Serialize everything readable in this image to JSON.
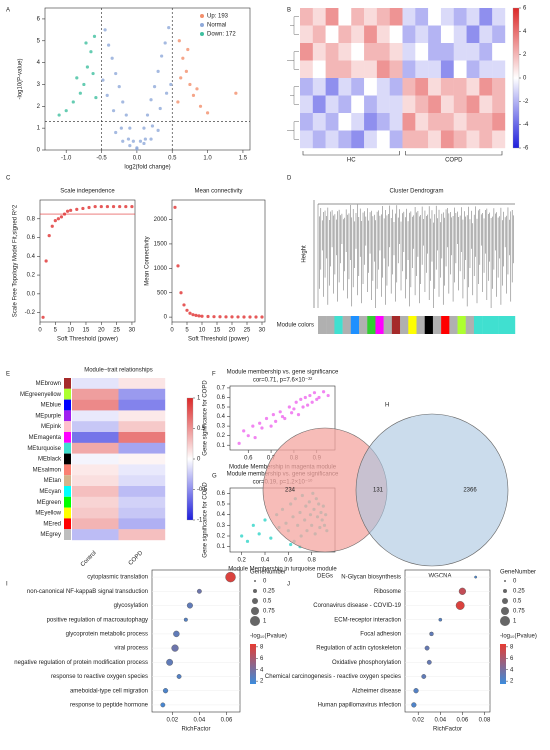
{
  "chart_data": [
    {
      "type": "scatter",
      "panel": "A",
      "xlabel": "log2(fold change)",
      "ylabel": "-log10(P-value)",
      "xlim": [
        -1.3,
        1.6
      ],
      "ylim": [
        0,
        6.5
      ],
      "xticks": [
        {
          "value": -1,
          "label": "-1.0"
        },
        {
          "value": -0.5,
          "label": "-0.5"
        },
        {
          "value": 0,
          "label": "0.0"
        },
        0.5,
        {
          "value": 1,
          "label": "1.0"
        },
        1.5
      ],
      "yticks": [
        0,
        1,
        2,
        3,
        4,
        5,
        6
      ],
      "thresholds": {
        "x": [
          -0.5,
          0.5
        ],
        "y": 1.3
      },
      "series": [
        {
          "name": "Up: 193",
          "color": "#f28e6b",
          "x": [
            0.6,
            0.65,
            0.7,
            0.75,
            0.8,
            0.9,
            1.0,
            0.62,
            0.72,
            0.85,
            1.4,
            0.58
          ],
          "values": [
            5.0,
            4.2,
            3.6,
            3.0,
            2.5,
            2.0,
            1.7,
            3.3,
            4.6,
            2.8,
            2.6,
            2.2
          ]
        },
        {
          "name": "Normal",
          "color": "#8fa9d9",
          "x": [
            -0.45,
            -0.4,
            -0.35,
            -0.3,
            -0.25,
            -0.2,
            -0.15,
            -0.1,
            -0.05,
            0,
            0.05,
            0.1,
            0.15,
            0.2,
            0.25,
            0.3,
            0.35,
            0.4,
            0.45,
            -0.42,
            -0.33,
            -0.22,
            -0.12,
            0.12,
            0.22,
            0.33,
            0.42,
            -0.3,
            -0.1,
            0.1,
            0.3,
            -0.2,
            0.2,
            0,
            -0.48,
            0.48
          ],
          "values": [
            5.5,
            4.8,
            4.2,
            3.5,
            2.9,
            2.2,
            1.6,
            1,
            0.4,
            0.1,
            0.4,
            1,
            1.6,
            2.3,
            2.9,
            3.6,
            4.3,
            4.9,
            5.6,
            2.5,
            1.8,
            1.0,
            0.5,
            0.5,
            1.1,
            1.9,
            2.6,
            0.8,
            0.2,
            0.3,
            0.9,
            0.4,
            0.5,
            0.05,
            3.2,
            3.0
          ]
        },
        {
          "name": "Down: 172",
          "color": "#3fbf9f",
          "x": [
            -0.6,
            -0.65,
            -0.7,
            -0.75,
            -0.8,
            -0.9,
            -1.0,
            -0.62,
            -0.72,
            -0.85,
            -1.1,
            -0.58
          ],
          "values": [
            5.2,
            4.5,
            3.8,
            3.0,
            2.6,
            2.2,
            1.8,
            3.5,
            4.9,
            3.3,
            1.6,
            2.4
          ]
        }
      ]
    },
    {
      "type": "heatmap",
      "panel": "B",
      "groups": [
        "HC",
        "COPD"
      ],
      "zlim": [
        -6,
        6
      ],
      "zticks": [
        6,
        4,
        2,
        0,
        -2,
        -4,
        -6
      ],
      "matrix": [
        [
          2,
          1,
          3,
          0,
          2,
          1,
          2,
          3,
          -1,
          -2,
          0,
          -1,
          -2,
          -1,
          -3,
          -1
        ],
        [
          1,
          2,
          0,
          2,
          1,
          3,
          1,
          0,
          -2,
          -1,
          -2,
          0,
          -1,
          -3,
          -1,
          -2
        ],
        [
          3,
          1,
          2,
          1,
          0,
          2,
          2,
          1,
          -1,
          0,
          -2,
          -2,
          -1,
          -1,
          -2,
          0
        ],
        [
          1,
          0,
          2,
          2,
          1,
          1,
          3,
          2,
          -2,
          -1,
          -1,
          -3,
          0,
          -2,
          -1,
          -1
        ],
        [
          -2,
          -1,
          -3,
          -1,
          -2,
          0,
          -1,
          -2,
          2,
          3,
          1,
          2,
          2,
          1,
          3,
          2
        ],
        [
          -1,
          -3,
          -1,
          -2,
          0,
          -2,
          -1,
          -1,
          1,
          2,
          3,
          1,
          2,
          3,
          1,
          2
        ],
        [
          -2,
          -1,
          -2,
          0,
          -1,
          -3,
          -2,
          -1,
          3,
          1,
          2,
          2,
          1,
          2,
          2,
          3
        ],
        [
          -1,
          -2,
          -1,
          -2,
          -3,
          -1,
          0,
          -2,
          2,
          2,
          1,
          3,
          2,
          1,
          2,
          1
        ]
      ]
    },
    {
      "type": "scatter",
      "panel": "C",
      "title": "Scale independence",
      "xlabel": "Soft Threshold (power)",
      "ylabel": "Scale Free Topology Model Fit,signed R^2",
      "color": "#e03030",
      "hline": 0.85,
      "xlim": [
        0,
        31
      ],
      "ylim": [
        -0.3,
        1.0
      ],
      "xticks": [
        0,
        5,
        10,
        15,
        20,
        25,
        30
      ],
      "yticks": [
        -0.2,
        {
          "value": 0,
          "label": "0.0"
        },
        0.2,
        0.4,
        0.6,
        0.8
      ],
      "x": [
        1,
        2,
        3,
        4,
        5,
        6,
        7,
        8,
        9,
        10,
        12,
        14,
        16,
        18,
        20,
        22,
        24,
        26,
        28,
        30
      ],
      "values": [
        -0.25,
        0.35,
        0.62,
        0.72,
        0.78,
        0.8,
        0.82,
        0.85,
        0.88,
        0.89,
        0.9,
        0.91,
        0.92,
        0.93,
        0.93,
        0.93,
        0.93,
        0.93,
        0.93,
        0.93
      ]
    },
    {
      "type": "scatter",
      "title": "Mean connectivity",
      "xlabel": "Soft Threshold (power)",
      "ylabel": "Mean Connectivity",
      "color": "#e03030",
      "xlim": [
        0,
        31
      ],
      "ylim": [
        -100,
        2400
      ],
      "xticks": [
        0,
        5,
        10,
        15,
        20,
        25,
        30
      ],
      "yticks": [
        0,
        500,
        1000,
        1500,
        2000
      ],
      "x": [
        1,
        2,
        3,
        4,
        5,
        6,
        7,
        8,
        9,
        10,
        12,
        14,
        16,
        18,
        20,
        22,
        24,
        26,
        28,
        30
      ],
      "values": [
        2250,
        1050,
        500,
        250,
        140,
        80,
        50,
        35,
        25,
        18,
        12,
        9,
        7,
        6,
        5,
        4,
        3,
        3,
        2,
        2
      ]
    },
    {
      "type": "dendrogram",
      "panel": "D",
      "title": "Cluster Dendrogram",
      "ylabel": "Height",
      "module_label": "Module colors",
      "module_colors": [
        "#b0b0b0",
        "#b0b0b0",
        "#40e0d0",
        "#b0b0b0",
        "#1e90ff",
        "#b0b0b0",
        "#32cd32",
        "#ff00ff",
        "#b0b0b0",
        "#a52a2a",
        "#b0b0b0",
        "#ffff00",
        "#b0b0b0",
        "#000000",
        "#b0b0b0",
        "#ff0000",
        "#b0b0b0",
        "#adff2f",
        "#b0b0b0",
        "#40e0d0",
        "#40e0d0",
        "#40e0d0",
        "#40e0d0",
        "#40e0d0"
      ]
    },
    {
      "type": "heatmap",
      "panel": "E",
      "title": "Module−trait relationships",
      "rows": [
        "MEbrown",
        "MEgreenyellow",
        "MEblue",
        "MEpurple",
        "MEpink",
        "MEmagenta",
        "MEturquoise",
        "MEblack",
        "MEsalmon",
        "MEtan",
        "MEcyan",
        "MEgreen",
        "MEyellow",
        "MEred",
        "MEgrey"
      ],
      "row_colors": [
        "#a52a2a",
        "#adff2f",
        "#0000ff",
        "#a020f0",
        "#ffc0cb",
        "#ff00ff",
        "#40e0d0",
        "#000000",
        "#fa8072",
        "#d2b48c",
        "#00ffff",
        "#00ff00",
        "#ffff00",
        "#ff0000",
        "#bebebe"
      ],
      "columns": [
        "Control",
        "COPD"
      ],
      "zlim": [
        -1,
        1
      ],
      "zticks": [
        1,
        0.5,
        0,
        -0.5,
        -1
      ],
      "matrix": [
        [
          -0.12,
          0.12
        ],
        [
          0.45,
          -0.45
        ],
        [
          0.55,
          -0.55
        ],
        [
          -0.1,
          0.1
        ],
        [
          -0.25,
          0.25
        ],
        [
          -0.62,
          0.62
        ],
        [
          0.4,
          -0.4
        ],
        [
          -0.05,
          0.05
        ],
        [
          0.1,
          -0.1
        ],
        [
          0.15,
          -0.15
        ],
        [
          0.3,
          -0.3
        ],
        [
          0.2,
          -0.2
        ],
        [
          0.25,
          -0.25
        ],
        [
          0.35,
          -0.35
        ],
        [
          -0.3,
          0.3
        ]
      ]
    },
    {
      "type": "scatter",
      "panel": "F",
      "title": "Module membership vs. gene significance",
      "subtitle": "cor=0.71, p=7.6×10⁻²²",
      "xlabel": "Module Membership in magenta module",
      "ylabel": "Gene significance for COPD",
      "color": "#ee66ee",
      "xlim": [
        0.52,
        0.98
      ],
      "ylim": [
        0.05,
        0.72
      ],
      "xticks": [
        0.6,
        0.7,
        0.8,
        0.9
      ],
      "yticks": [
        0.1,
        0.2,
        0.3,
        0.4,
        0.5,
        0.6,
        0.7
      ],
      "x": [
        0.56,
        0.58,
        0.6,
        0.62,
        0.63,
        0.65,
        0.66,
        0.68,
        0.7,
        0.71,
        0.72,
        0.74,
        0.75,
        0.76,
        0.78,
        0.79,
        0.8,
        0.81,
        0.82,
        0.83,
        0.84,
        0.85,
        0.86,
        0.87,
        0.88,
        0.89,
        0.9,
        0.91,
        0.93,
        0.95
      ],
      "values": [
        0.12,
        0.25,
        0.2,
        0.3,
        0.18,
        0.33,
        0.28,
        0.38,
        0.3,
        0.42,
        0.35,
        0.45,
        0.4,
        0.38,
        0.5,
        0.44,
        0.48,
        0.55,
        0.42,
        0.58,
        0.5,
        0.6,
        0.52,
        0.62,
        0.55,
        0.65,
        0.58,
        0.6,
        0.66,
        0.62
      ]
    },
    {
      "type": "scatter",
      "panel": "G",
      "title": "Module membership vs. gene significance",
      "subtitle": "cor=0.19, p=1.2×10⁻¹⁰",
      "xlabel": "Module Membership in turquoise module",
      "ylabel": "Gene significance for COPD",
      "color": "#30d5c8",
      "xlim": [
        0.1,
        1.0
      ],
      "ylim": [
        0.05,
        0.65
      ],
      "xticks": [
        0.2,
        0.4,
        0.6,
        0.8
      ],
      "yticks": [
        0.1,
        0.2,
        0.3,
        0.4,
        0.5,
        0.6
      ],
      "x": [
        0.2,
        0.25,
        0.3,
        0.35,
        0.4,
        0.45,
        0.5,
        0.52,
        0.55,
        0.58,
        0.6,
        0.62,
        0.64,
        0.65,
        0.66,
        0.68,
        0.7,
        0.71,
        0.72,
        0.74,
        0.75,
        0.76,
        0.78,
        0.79,
        0.8,
        0.81,
        0.82,
        0.83,
        0.84,
        0.85,
        0.86,
        0.87,
        0.88,
        0.89,
        0.9,
        0.91,
        0.92,
        0.93,
        0.62,
        0.7
      ],
      "values": [
        0.2,
        0.15,
        0.3,
        0.22,
        0.35,
        0.18,
        0.4,
        0.28,
        0.45,
        0.32,
        0.25,
        0.5,
        0.38,
        0.15,
        0.55,
        0.3,
        0.42,
        0.2,
        0.58,
        0.35,
        0.48,
        0.25,
        0.52,
        0.4,
        0.3,
        0.6,
        0.45,
        0.22,
        0.55,
        0.38,
        0.5,
        0.28,
        0.42,
        0.35,
        0.48,
        0.3,
        0.4,
        0.25,
        0.12,
        0.1
      ]
    },
    {
      "type": "venn",
      "panel": "H",
      "sets": [
        "DEGs",
        "WGCNA"
      ],
      "values": [
        234,
        131,
        2366
      ],
      "colors": [
        "#f4a6a0",
        "#a8c4e0"
      ]
    },
    {
      "type": "dot",
      "panel": "I",
      "xlabel": "RichFactor",
      "xlim": [
        0.005,
        0.07
      ],
      "xticks": [
        0.02,
        0.04,
        0.06
      ],
      "categories": [
        "cytoplasmic translation",
        "non-canonical NF-kappaB signal transduction",
        "glycosylation",
        "positive regulation of macroautophagy",
        "glycoprotein metabolic process",
        "viral process",
        "negative regulation of protein modification process",
        "response to reactive oxygen species",
        "ameboidal-type cell migration",
        "response to peptide hormone"
      ],
      "values": [
        0.063,
        0.04,
        0.033,
        0.03,
        0.023,
        0.022,
        0.018,
        0.025,
        0.015,
        0.013
      ],
      "sizes": [
        1,
        0.3,
        0.45,
        0.2,
        0.5,
        0.6,
        0.55,
        0.3,
        0.35,
        0.3
      ],
      "pvalues": [
        8,
        3.5,
        3,
        2.5,
        3,
        3.5,
        3,
        2.5,
        2.2,
        2
      ],
      "size_title": "GeneNumber",
      "size_ticks": [
        0,
        0.25,
        0.5,
        0.75,
        1
      ],
      "color_title": "-log₁₀(Pvalue)",
      "clim": [
        1.5,
        8.5
      ],
      "color_ticks": [
        8,
        6,
        4,
        2
      ]
    },
    {
      "type": "dot",
      "panel": "J",
      "xlabel": "RichFactor",
      "xlim": [
        0.008,
        0.085
      ],
      "xticks": [
        0.02,
        0.04,
        0.06,
        0.08
      ],
      "categories": [
        "N-Glycan biosynthesis",
        "Ribosome",
        "Coronavirus disease - COVID-19",
        "ECM-receptor interaction",
        "Focal adhesion",
        "Regulation of actin cytoskeleton",
        "Oxidative phosphorylation",
        "Chemical carcinogenesis - reactive oxygen species",
        "Alzheimer disease",
        "Human papillomavirus infection"
      ],
      "values": [
        0.072,
        0.06,
        0.058,
        0.04,
        0.032,
        0.028,
        0.03,
        0.025,
        0.018,
        0.016
      ],
      "sizes": [
        0.05,
        0.6,
        0.8,
        0.15,
        0.25,
        0.3,
        0.3,
        0.3,
        0.35,
        0.35
      ],
      "pvalues": [
        2,
        7,
        8,
        2.5,
        3,
        3.2,
        3.2,
        3,
        2.5,
        2.3
      ],
      "size_title": "GeneNumber",
      "size_ticks": [
        0,
        0.25,
        0.5,
        0.75,
        1
      ],
      "color_title": "-log₁₀(Pvalue)",
      "clim": [
        1.5,
        8.5
      ],
      "color_ticks": [
        8,
        6,
        4,
        2
      ]
    }
  ]
}
